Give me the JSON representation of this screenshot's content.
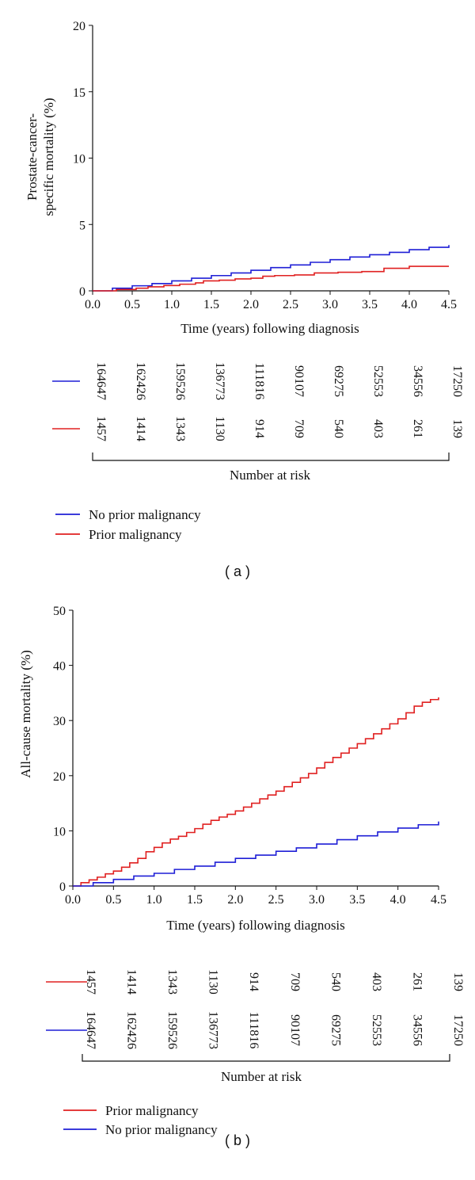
{
  "chart_data": [
    {
      "type": "line",
      "step": true,
      "panel_label": "( a )",
      "ylabel_lines": [
        "Prostate-cancer-",
        "specific mortality (%)"
      ],
      "xlabel": "Time (years) following diagnosis",
      "xlim": [
        0,
        4.5
      ],
      "ylim": [
        0,
        20
      ],
      "xticks": [
        "0.0",
        "0.5",
        "1.0",
        "1.5",
        "2.0",
        "2.5",
        "3.0",
        "3.5",
        "4.0",
        "4.5"
      ],
      "yticks": [
        "0",
        "5",
        "10",
        "15",
        "20"
      ],
      "series": [
        {
          "name": "No prior malignancy",
          "color": "#1f1fd6",
          "x": [
            0,
            0.25,
            0.5,
            0.75,
            1.0,
            1.25,
            1.5,
            1.75,
            2.0,
            2.25,
            2.5,
            2.75,
            3.0,
            3.25,
            3.5,
            3.75,
            4.0,
            4.25,
            4.5
          ],
          "y": [
            0,
            0.2,
            0.38,
            0.55,
            0.75,
            0.95,
            1.15,
            1.35,
            1.55,
            1.75,
            1.95,
            2.15,
            2.35,
            2.55,
            2.72,
            2.9,
            3.1,
            3.28,
            3.45
          ]
        },
        {
          "name": "Prior malignancy",
          "color": "#e02020",
          "x": [
            0,
            0.3,
            0.55,
            0.7,
            0.9,
            1.1,
            1.3,
            1.4,
            1.6,
            1.8,
            2.0,
            2.15,
            2.3,
            2.55,
            2.8,
            3.1,
            3.4,
            3.68,
            4.0,
            4.5
          ],
          "y": [
            0,
            0.1,
            0.2,
            0.3,
            0.4,
            0.5,
            0.6,
            0.75,
            0.8,
            0.9,
            0.95,
            1.1,
            1.15,
            1.2,
            1.35,
            1.4,
            1.45,
            1.7,
            1.85,
            1.85
          ]
        }
      ],
      "risk_table": {
        "label": "Number at risk",
        "rows": [
          {
            "color": "#1f1fd6",
            "values": [
              "164647",
              "162426",
              "159526",
              "136773",
              "111816",
              "90107",
              "69275",
              "52553",
              "34556",
              "17250"
            ]
          },
          {
            "color": "#e02020",
            "values": [
              "1457",
              "1414",
              "1343",
              "1130",
              "914",
              "709",
              "540",
              "403",
              "261",
              "139"
            ]
          }
        ]
      },
      "legend": [
        {
          "label": "No prior malignancy",
          "color": "#1f1fd6"
        },
        {
          "label": "Prior malignancy",
          "color": "#e02020"
        }
      ]
    },
    {
      "type": "line",
      "step": true,
      "panel_label": "( b )",
      "ylabel_lines": [
        "All-cause mortality (%)"
      ],
      "xlabel": "Time (years) following diagnosis",
      "xlim": [
        0,
        4.5
      ],
      "ylim": [
        0,
        50
      ],
      "xticks": [
        "0.0",
        "0.5",
        "1.0",
        "1.5",
        "2.0",
        "2.5",
        "3.0",
        "3.5",
        "4.0",
        "4.5"
      ],
      "yticks": [
        "0",
        "10",
        "20",
        "30",
        "40",
        "50"
      ],
      "series": [
        {
          "name": "Prior malignancy",
          "color": "#e02020",
          "x": [
            0,
            0.1,
            0.2,
            0.3,
            0.4,
            0.5,
            0.6,
            0.7,
            0.8,
            0.9,
            1.0,
            1.1,
            1.2,
            1.3,
            1.4,
            1.5,
            1.6,
            1.7,
            1.8,
            1.9,
            2.0,
            2.1,
            2.2,
            2.3,
            2.4,
            2.5,
            2.6,
            2.7,
            2.8,
            2.9,
            3.0,
            3.1,
            3.2,
            3.3,
            3.4,
            3.5,
            3.6,
            3.7,
            3.8,
            3.9,
            4.0,
            4.1,
            4.2,
            4.3,
            4.4,
            4.5
          ],
          "y": [
            0,
            0.6,
            1.1,
            1.6,
            2.2,
            2.7,
            3.4,
            4.2,
            5.0,
            6.2,
            7.0,
            7.8,
            8.5,
            9.0,
            9.7,
            10.4,
            11.2,
            11.9,
            12.5,
            13.0,
            13.6,
            14.3,
            15.0,
            15.8,
            16.5,
            17.2,
            18.0,
            18.8,
            19.6,
            20.4,
            21.4,
            22.4,
            23.3,
            24.1,
            25.0,
            25.8,
            26.7,
            27.6,
            28.5,
            29.4,
            30.3,
            31.4,
            32.6,
            33.3,
            33.8,
            34.2
          ]
        },
        {
          "name": "No prior malignancy",
          "color": "#1f1fd6",
          "x": [
            0,
            0.25,
            0.5,
            0.75,
            1.0,
            1.25,
            1.5,
            1.75,
            2.0,
            2.25,
            2.5,
            2.75,
            3.0,
            3.25,
            3.5,
            3.75,
            4.0,
            4.25,
            4.5
          ],
          "y": [
            0,
            0.6,
            1.2,
            1.8,
            2.3,
            3.0,
            3.6,
            4.3,
            5.0,
            5.6,
            6.3,
            6.9,
            7.6,
            8.4,
            9.1,
            9.8,
            10.5,
            11.1,
            11.7
          ]
        }
      ],
      "risk_table": {
        "label": "Number at risk",
        "rows": [
          {
            "color": "#e02020",
            "values": [
              "1457",
              "1414",
              "1343",
              "1130",
              "914",
              "709",
              "540",
              "403",
              "261",
              "139"
            ]
          },
          {
            "color": "#1f1fd6",
            "values": [
              "164647",
              "162426",
              "159526",
              "136773",
              "111816",
              "90107",
              "69275",
              "52553",
              "34556",
              "17250"
            ]
          }
        ]
      },
      "legend": [
        {
          "label": "Prior malignancy",
          "color": "#e02020"
        },
        {
          "label": "No prior malignancy",
          "color": "#1f1fd6"
        }
      ]
    }
  ]
}
